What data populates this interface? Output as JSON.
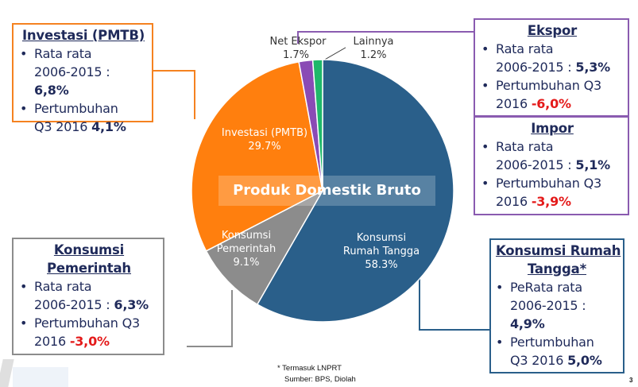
{
  "chart_data": {
    "type": "pie",
    "title": "Produk Domestik Bruto",
    "slices": [
      {
        "label": "Konsumsi Rumah Tangga",
        "value": 58.3,
        "color": "#2a5f8a"
      },
      {
        "label": "Konsumsi Pemerintah",
        "value": 9.1,
        "color": "#8c8c8c"
      },
      {
        "label": "Investasi (PMTB)",
        "value": 29.7,
        "color": "#ff7f0e"
      },
      {
        "label": "Net Ekspor",
        "value": 1.7,
        "color": "#8a4bb5"
      },
      {
        "label": "Lainnya",
        "value": 1.2,
        "color": "#1fb86a"
      }
    ],
    "start_angle_deg": 0,
    "direction": "clockwise"
  },
  "pie_labels": {
    "rt_line1": "Konsumsi",
    "rt_line2": "Rumah Tangga",
    "rt_pct": "58.3%",
    "pem_line1": "Konsumsi",
    "pem_line2": "Pemerintah",
    "pem_pct": "9.1%",
    "inv_line1": "Investasi (PMTB)",
    "inv_pct": "29.7%",
    "net_line1": "Net Ekspor",
    "net_pct": "1.7%",
    "lain_line1": "Lainnya",
    "lain_pct": "1.2%",
    "center_title": "Produk Domestik Bruto"
  },
  "boxes": {
    "investasi": {
      "title": "Investasi (PMTB)",
      "avg_label": "Rata rata",
      "avg_period": "2006-2015 :",
      "avg_value": "6,8%",
      "growth_label": "Pertumbuhan",
      "growth_period": "Q3 2016",
      "growth_value": "4,1%",
      "border_color": "#f58220"
    },
    "ekspor": {
      "title": "Ekspor",
      "avg_label": "Rata rata",
      "avg_period": "2006-2015 :",
      "avg_value": "5,3%",
      "growth_label": "Pertumbuhan Q3",
      "growth_period": "2016",
      "growth_value": "-6,0%",
      "border_color": "#8a5bb0"
    },
    "impor": {
      "title": "Impor",
      "avg_label": "Rata rata",
      "avg_period": "2006-2015 :",
      "avg_value": "5,1%",
      "growth_label": "Pertumbuhan Q3",
      "growth_period": "2016",
      "growth_value": "-3,9%",
      "border_color": "#8a5bb0"
    },
    "pemerintah": {
      "title_line1": "Konsumsi",
      "title_line2": "Pemerintah",
      "avg_label": "Rata rata",
      "avg_period": "2006-2015 :",
      "avg_value": "6,3%",
      "growth_label": "Pertumbuhan Q3",
      "growth_period": "2016",
      "growth_value": "-3,0%",
      "border_color": "#8c8c8c"
    },
    "rumah_tangga": {
      "title_line1": "Konsumsi Rumah",
      "title_line2": "Tangga*",
      "avg_label": "PeRata rata",
      "avg_period": "2006-2015 :",
      "avg_value": "4,9%",
      "growth_label": "Pertumbuhan",
      "growth_period": "Q3 2016",
      "growth_value": "5,0%",
      "border_color": "#2a5f8a"
    }
  },
  "footer": {
    "note": "* Termasuk LNPRT",
    "source": "Sumber: BPS, Diolah",
    "page_number": "3"
  },
  "bullet": "•"
}
